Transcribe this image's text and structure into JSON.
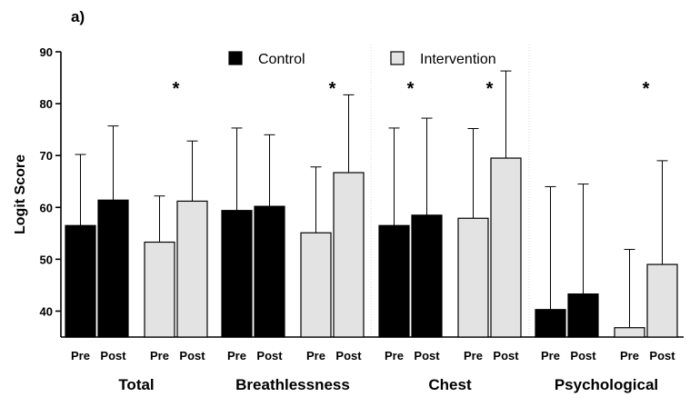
{
  "panel_label": "a)",
  "chart_data": {
    "type": "bar",
    "ylabel": "Logit Score",
    "ylim": [
      35,
      90
    ],
    "yticks": [
      40,
      50,
      60,
      70,
      80,
      90
    ],
    "legend": {
      "placement": "top-center"
    },
    "series_styles": [
      {
        "name": "Control",
        "color": "#000000"
      },
      {
        "name": "Intervention",
        "color": "#e3e3e3"
      }
    ],
    "groups": [
      {
        "name": "Total",
        "bars": [
          {
            "series": "Control",
            "label": "Pre",
            "value": 56.5,
            "error_upper": 70.2
          },
          {
            "series": "Control",
            "label": "Post",
            "value": 61.4,
            "error_upper": 75.7
          },
          {
            "series": "Intervention",
            "label": "Pre",
            "value": 53.3,
            "error_upper": 62.2
          },
          {
            "series": "Intervention",
            "label": "Post",
            "value": 61.2,
            "error_upper": 72.8
          }
        ],
        "significance": [
          {
            "series": "Intervention",
            "mark": "*"
          }
        ]
      },
      {
        "name": "Breathlessness",
        "bars": [
          {
            "series": "Control",
            "label": "Pre",
            "value": 59.4,
            "error_upper": 75.3
          },
          {
            "series": "Control",
            "label": "Post",
            "value": 60.2,
            "error_upper": 74.0
          },
          {
            "series": "Intervention",
            "label": "Pre",
            "value": 55.1,
            "error_upper": 67.8
          },
          {
            "series": "Intervention",
            "label": "Post",
            "value": 66.7,
            "error_upper": 81.7
          }
        ],
        "significance": [
          {
            "series": "Intervention",
            "mark": "*"
          }
        ]
      },
      {
        "name": "Chest",
        "bars": [
          {
            "series": "Control",
            "label": "Pre",
            "value": 56.5,
            "error_upper": 75.3
          },
          {
            "series": "Control",
            "label": "Post",
            "value": 58.5,
            "error_upper": 77.2
          },
          {
            "series": "Intervention",
            "label": "Pre",
            "value": 57.9,
            "error_upper": 75.2
          },
          {
            "series": "Intervention",
            "label": "Post",
            "value": 69.5,
            "error_upper": 86.3
          }
        ],
        "significance": [
          {
            "series": "Control",
            "mark": "*"
          },
          {
            "series": "Intervention",
            "mark": "*"
          }
        ]
      },
      {
        "name": "Psychological",
        "bars": [
          {
            "series": "Control",
            "label": "Pre",
            "value": 40.3,
            "error_upper": 64.0
          },
          {
            "series": "Control",
            "label": "Post",
            "value": 43.3,
            "error_upper": 64.5
          },
          {
            "series": "Intervention",
            "label": "Pre",
            "value": 36.8,
            "error_upper": 51.9
          },
          {
            "series": "Intervention",
            "label": "Post",
            "value": 49.0,
            "error_upper": 69.0
          }
        ],
        "significance": [
          {
            "series": "Intervention",
            "mark": "*"
          }
        ]
      }
    ]
  }
}
